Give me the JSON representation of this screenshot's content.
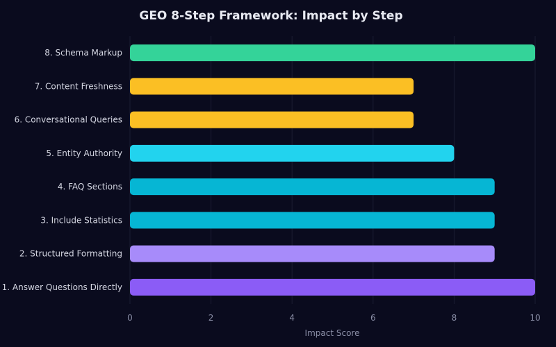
{
  "chart_data": {
    "type": "bar",
    "orientation": "horizontal",
    "title": "GEO 8-Step Framework: Impact by Step",
    "xlabel": "Impact Score",
    "ylabel": "",
    "xlim": [
      0,
      10
    ],
    "xticks": [
      0,
      2,
      4,
      6,
      8,
      10
    ],
    "grid": true,
    "categories": [
      "8. Schema Markup",
      "7. Content Freshness",
      "6. Conversational Queries",
      "5. Entity Authority",
      "4. FAQ Sections",
      "3. Include Statistics",
      "2. Structured Formatting",
      "1. Answer Questions Directly"
    ],
    "values": [
      10,
      7,
      7,
      8,
      9,
      9,
      9,
      10
    ],
    "colors": [
      "#34d399",
      "#fbbf24",
      "#fbbf24",
      "#22d3ee",
      "#06b6d4",
      "#06b6d4",
      "#a78bfa",
      "#8b5cf6"
    ]
  }
}
